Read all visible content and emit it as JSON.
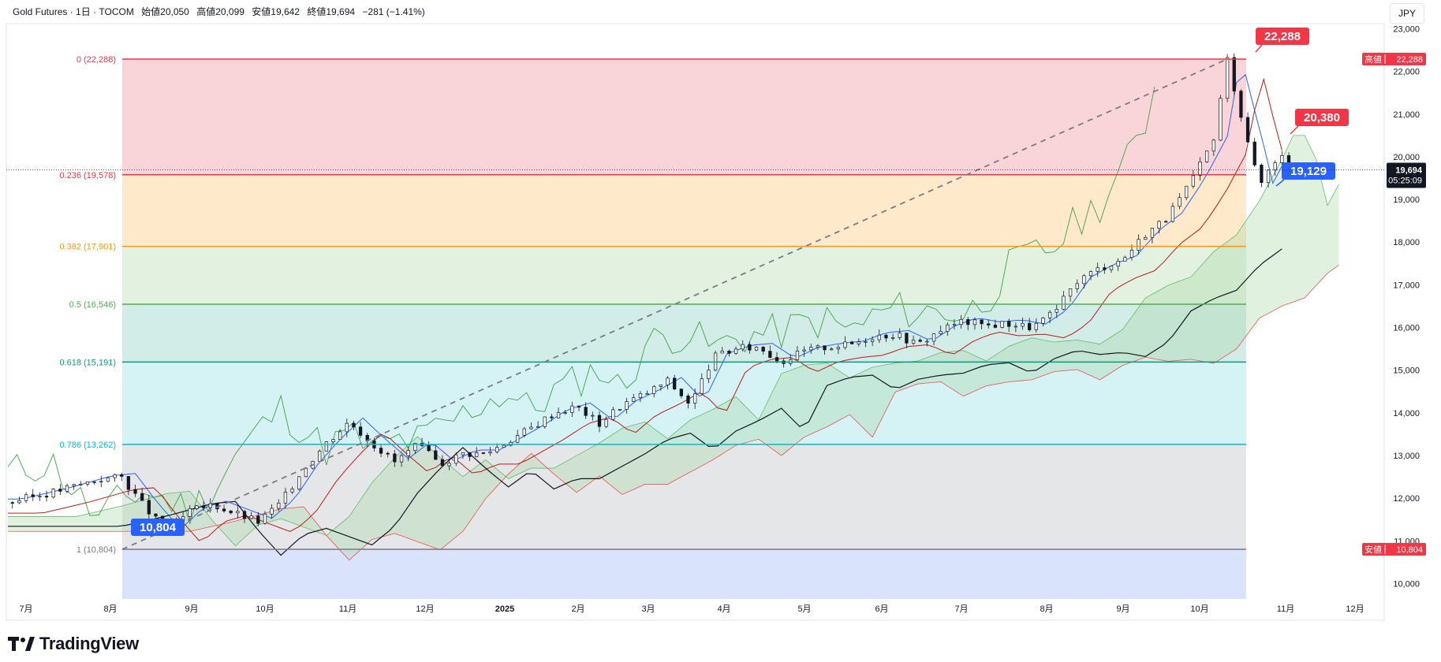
{
  "header": {
    "symbol": "Gold Futures · 1日 · TOCOM",
    "open": "始値20,050",
    "high": "高値20,099",
    "low": "安値19,642",
    "close": "終値19,694",
    "change": "−281 (−1.41%)"
  },
  "currency": "JPY",
  "brand": "TradingView",
  "colors": {
    "up": "#131722",
    "fib0": "#f23645",
    "fib236": "#f23645",
    "fib382": "#ff9800",
    "fib5": "#4caf50",
    "fib618": "#089981",
    "fib786": "#00bcd4",
    "fib1": "#787b86",
    "labelRed": "#f23645",
    "labelBlue": "#2962ff"
  },
  "chart_data": {
    "type": "candlestick",
    "title": "Gold Futures · 1日 · TOCOM",
    "ylim": [
      9500,
      23400
    ],
    "y_ticks": [
      10000,
      11000,
      12000,
      13000,
      14000,
      15000,
      16000,
      17000,
      18000,
      19000,
      20000,
      21000,
      22000,
      23000
    ],
    "y_tick_labels": [
      "10,000",
      "11,000",
      "12,000",
      "13,000",
      "14,000",
      "15,000",
      "16,000",
      "17,000",
      "18,000",
      "19,000",
      "20,000",
      "21,000",
      "22,000",
      "23,000"
    ],
    "x_labels": [
      "7月",
      "8月",
      "9月",
      "10月",
      "11月",
      "12月",
      "2025",
      "2月",
      "3月",
      "4月",
      "5月",
      "6月",
      "7月",
      "8月",
      "9月",
      "10月",
      "11月",
      "12月"
    ],
    "fibonacci": [
      {
        "level": "0",
        "price": 22288,
        "label": "0 (22,288)"
      },
      {
        "level": "0.236",
        "price": 19578,
        "label": "0.236 (19,578)"
      },
      {
        "level": "0.382",
        "price": 17901,
        "label": "0.382 (17,901)"
      },
      {
        "level": "0.5",
        "price": 16546,
        "label": "0.5 (16,546)"
      },
      {
        "level": "0.618",
        "price": 15191,
        "label": "0.618 (15,191)"
      },
      {
        "level": "0.786",
        "price": 13262,
        "label": "0.786 (13,262)"
      },
      {
        "level": "1",
        "price": 10804,
        "label": "1 (10,804)"
      }
    ],
    "price_series": [
      {
        "t": 0,
        "v": 11900
      },
      {
        "t": 2,
        "v": 12150
      },
      {
        "t": 4,
        "v": 12450
      },
      {
        "t": 5,
        "v": 12500
      },
      {
        "t": 6,
        "v": 11800
      },
      {
        "t": 7,
        "v": 11200
      },
      {
        "t": 8,
        "v": 11700
      },
      {
        "t": 9,
        "v": 11850
      },
      {
        "t": 10,
        "v": 11650
      },
      {
        "t": 11,
        "v": 11450
      },
      {
        "t": 12,
        "v": 11900
      },
      {
        "t": 13,
        "v": 12700
      },
      {
        "t": 14,
        "v": 13300
      },
      {
        "t": 15,
        "v": 13800
      },
      {
        "t": 16,
        "v": 13300
      },
      {
        "t": 17,
        "v": 12850
      },
      {
        "t": 18,
        "v": 13250
      },
      {
        "t": 19,
        "v": 12800
      },
      {
        "t": 20,
        "v": 13050
      },
      {
        "t": 21,
        "v": 13050
      },
      {
        "t": 22,
        "v": 13350
      },
      {
        "t": 23,
        "v": 13650
      },
      {
        "t": 24,
        "v": 14000
      },
      {
        "t": 25,
        "v": 14150
      },
      {
        "t": 26,
        "v": 13750
      },
      {
        "t": 27,
        "v": 14200
      },
      {
        "t": 28,
        "v": 14450
      },
      {
        "t": 29,
        "v": 14750
      },
      {
        "t": 30,
        "v": 14200
      },
      {
        "t": 31,
        "v": 15300
      },
      {
        "t": 32,
        "v": 15500
      },
      {
        "t": 33,
        "v": 15550
      },
      {
        "t": 34,
        "v": 15200
      },
      {
        "t": 35,
        "v": 15450
      },
      {
        "t": 36,
        "v": 15550
      },
      {
        "t": 37,
        "v": 15600
      },
      {
        "t": 38,
        "v": 15800
      },
      {
        "t": 39,
        "v": 15850
      },
      {
        "t": 40,
        "v": 15600
      },
      {
        "t": 41,
        "v": 15950
      },
      {
        "t": 42,
        "v": 16150
      },
      {
        "t": 43,
        "v": 16050
      },
      {
        "t": 44,
        "v": 16100
      },
      {
        "t": 45,
        "v": 16000
      },
      {
        "t": 46,
        "v": 16350
      },
      {
        "t": 47,
        "v": 17100
      },
      {
        "t": 48,
        "v": 17400
      },
      {
        "t": 49,
        "v": 17600
      },
      {
        "t": 50,
        "v": 18200
      },
      {
        "t": 51,
        "v": 18600
      },
      {
        "t": 52,
        "v": 19400
      },
      {
        "t": 53,
        "v": 20400
      },
      {
        "t": 53.6,
        "v": 22288
      },
      {
        "t": 54,
        "v": 21400
      },
      {
        "t": 54.5,
        "v": 20400
      },
      {
        "t": 55,
        "v": 19300
      },
      {
        "t": 55.5,
        "v": 19800
      },
      {
        "t": 56,
        "v": 20100
      },
      {
        "t": 56.3,
        "v": 19694
      }
    ],
    "price_labels": [
      {
        "text": "22,288",
        "color": "red"
      },
      {
        "text": "20,380",
        "color": "red"
      },
      {
        "text": "19,129",
        "color": "blue"
      },
      {
        "text": "10,804",
        "color": "blue"
      }
    ],
    "right_labels": {
      "high_tag": "高値",
      "high_value": "22,288",
      "low_tag": "安値",
      "low_value": "10,804",
      "last_price": "19,694",
      "countdown": "05:25:09"
    }
  }
}
